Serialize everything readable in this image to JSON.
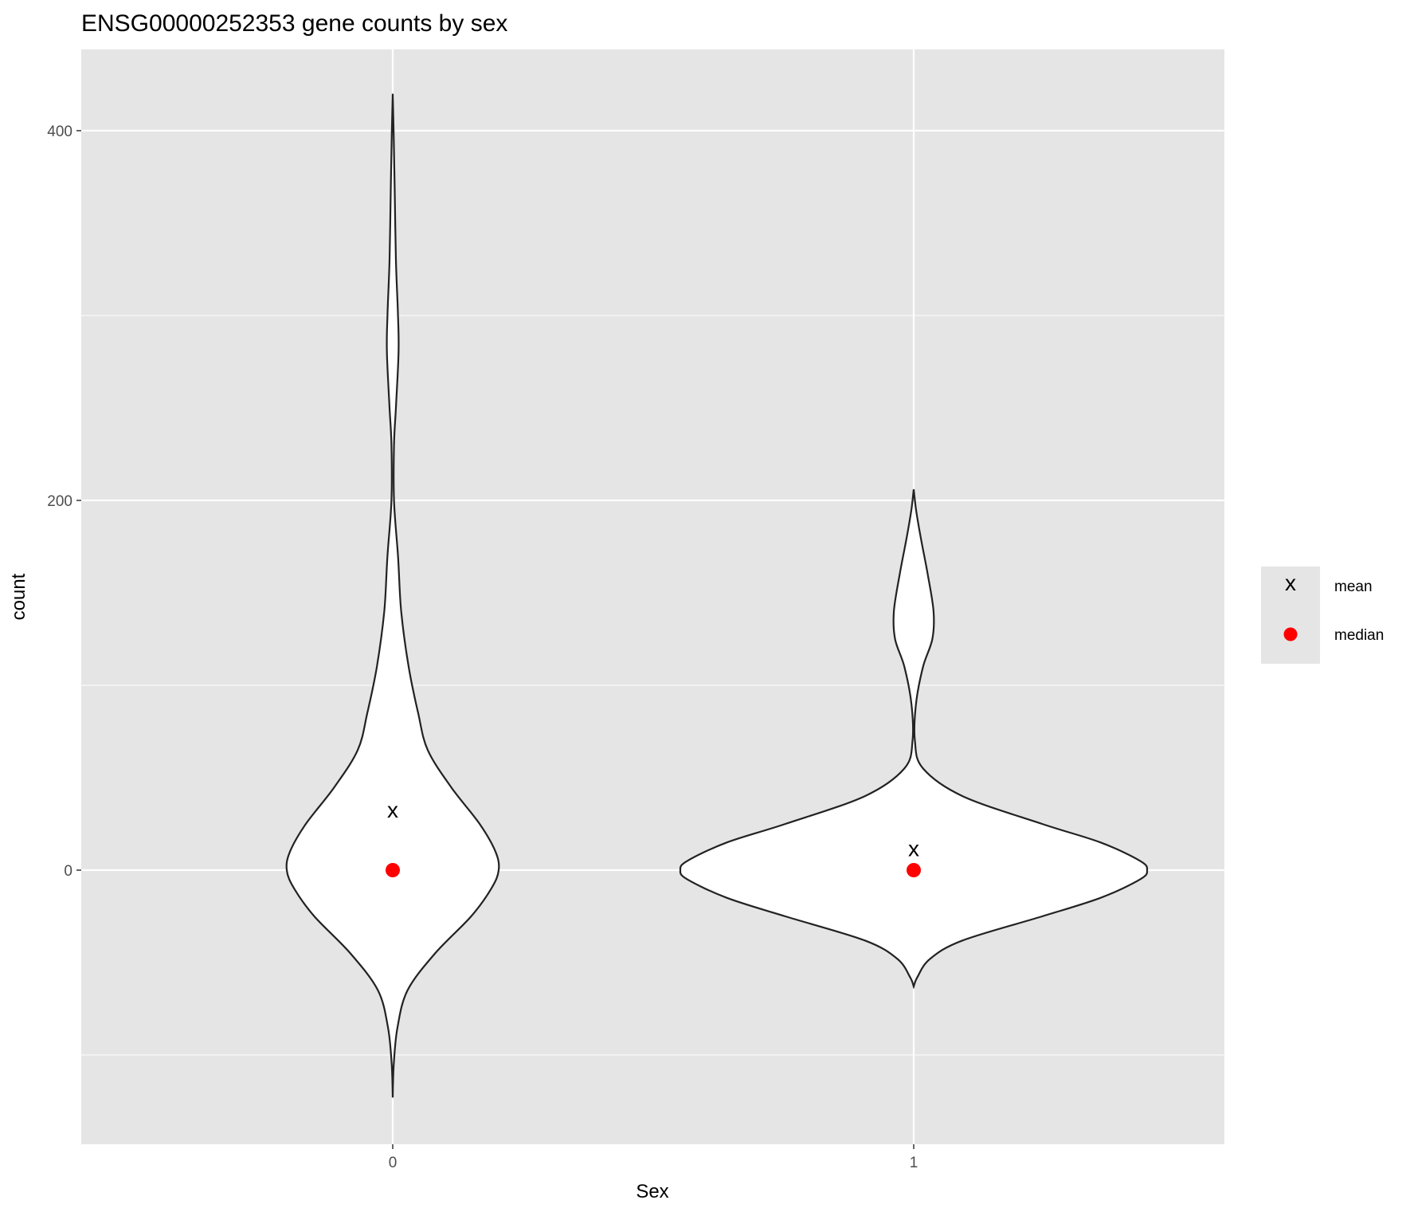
{
  "chart_data": {
    "type": "violin",
    "title": "ENSG00000252353 gene counts by sex",
    "xlabel": "Sex",
    "ylabel": "count",
    "categories": [
      "0",
      "1"
    ],
    "y_ticks": [
      0,
      200,
      400
    ],
    "ylim": [
      -150,
      448
    ],
    "grid": true,
    "legend_position": "right",
    "legend": [
      {
        "label": "mean",
        "marker": "x",
        "color": "#000000"
      },
      {
        "label": "median",
        "marker": "point",
        "color": "#ff0000"
      }
    ],
    "series": [
      {
        "category": "0",
        "mean": 32,
        "median": 0,
        "y_min": -123,
        "y_max": 420,
        "density_profile": [
          [
            -123,
            0.0
          ],
          [
            -105,
            0.01
          ],
          [
            -85,
            0.045
          ],
          [
            -65,
            0.14
          ],
          [
            -45,
            0.4
          ],
          [
            -25,
            0.74
          ],
          [
            -10,
            0.93
          ],
          [
            0,
            1.0
          ],
          [
            10,
            0.97
          ],
          [
            25,
            0.82
          ],
          [
            45,
            0.55
          ],
          [
            65,
            0.33
          ],
          [
            85,
            0.24
          ],
          [
            110,
            0.15
          ],
          [
            140,
            0.08
          ],
          [
            170,
            0.05
          ],
          [
            200,
            0.012
          ],
          [
            230,
            0.012
          ],
          [
            250,
            0.03
          ],
          [
            280,
            0.055
          ],
          [
            300,
            0.05
          ],
          [
            330,
            0.03
          ],
          [
            370,
            0.018
          ],
          [
            400,
            0.008
          ],
          [
            420,
            0.0
          ]
        ]
      },
      {
        "category": "1",
        "mean": 11,
        "median": 0,
        "y_min": -63,
        "y_max": 206,
        "density_profile": [
          [
            -63,
            0.0
          ],
          [
            -58,
            0.015
          ],
          [
            -48,
            0.07
          ],
          [
            -38,
            0.21
          ],
          [
            -25,
            0.55
          ],
          [
            -15,
            0.8
          ],
          [
            -5,
            0.97
          ],
          [
            0,
            1.0
          ],
          [
            5,
            0.97
          ],
          [
            15,
            0.8
          ],
          [
            25,
            0.55
          ],
          [
            40,
            0.21
          ],
          [
            55,
            0.04
          ],
          [
            70,
            0.005
          ],
          [
            90,
            0.01
          ],
          [
            110,
            0.04
          ],
          [
            125,
            0.08
          ],
          [
            140,
            0.085
          ],
          [
            160,
            0.06
          ],
          [
            180,
            0.03
          ],
          [
            195,
            0.01
          ],
          [
            206,
            0.0
          ]
        ]
      }
    ]
  }
}
